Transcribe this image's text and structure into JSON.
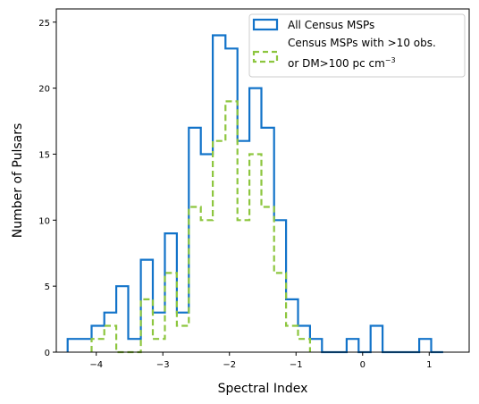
{
  "chart_data": {
    "type": "histogram",
    "xlabel": "Spectral Index",
    "ylabel": "Number of Pulsars",
    "xlim": [
      -4.6,
      1.6
    ],
    "ylim": [
      0,
      26
    ],
    "xticks": [
      -4,
      -3,
      -2,
      -1,
      0,
      1
    ],
    "xtick_labels": [
      "−4",
      "−3",
      "−2",
      "−1",
      "0",
      "1"
    ],
    "yticks": [
      0,
      5,
      10,
      15,
      20,
      25
    ],
    "ytick_labels": [
      "0",
      "5",
      "10",
      "15",
      "20",
      "25"
    ],
    "bin_edges": [
      -4.4,
      -4.2,
      -4.0,
      -3.8,
      -3.6,
      -3.4,
      -3.2,
      -3.0,
      -2.8,
      -2.6,
      -2.4,
      -2.2,
      -2.0,
      -1.8,
      -1.6,
      -1.4,
      -1.2,
      -1.0,
      -0.8,
      -0.6,
      -0.4,
      -0.2,
      0.0,
      0.2,
      0.4,
      0.6,
      0.8,
      1.0,
      1.2
    ],
    "series": [
      {
        "name": "All Census MSPs",
        "style": "solid",
        "color": "#1273c9",
        "bin_edges": [
          -4.43,
          -4.07,
          -3.88,
          -3.7,
          -3.52,
          -3.33,
          -3.15,
          -2.97,
          -2.79,
          -2.61,
          -2.43,
          -2.25,
          -2.06,
          -1.88,
          -1.7,
          -1.52,
          -1.33,
          -1.15,
          -0.97,
          -0.79,
          -0.61,
          -0.43,
          -0.24,
          -0.06,
          0.12,
          0.3,
          0.49,
          0.67,
          0.85,
          1.03,
          1.21
        ],
        "values": [
          1,
          2,
          3,
          5,
          1,
          7,
          3,
          9,
          3,
          17,
          15,
          24,
          23,
          16,
          20,
          17,
          10,
          4,
          2,
          1,
          0,
          0,
          1,
          0,
          2,
          0,
          0,
          0,
          1,
          0
        ]
      },
      {
        "name": "Census MSPs with >10 obs. or DM>100 pc cm⁻³",
        "label_line1": "Census MSPs with >10 obs.",
        "label_line2_main": "or DM>100 pc cm",
        "label_line2_sup": "−3",
        "style": "dashed",
        "color": "#8dc63f",
        "bin_edges": [
          -4.07,
          -3.88,
          -3.7,
          -3.52,
          -3.33,
          -3.15,
          -2.97,
          -2.79,
          -2.61,
          -2.43,
          -2.25,
          -2.06,
          -1.88,
          -1.7,
          -1.52,
          -1.33,
          -1.15,
          -0.97,
          -0.79
        ],
        "values": [
          1,
          2,
          0,
          0,
          4,
          1,
          6,
          2,
          11,
          10,
          16,
          19,
          10,
          15,
          11,
          6,
          2,
          1
        ]
      }
    ],
    "legend_position": "top-right",
    "grid": false
  }
}
